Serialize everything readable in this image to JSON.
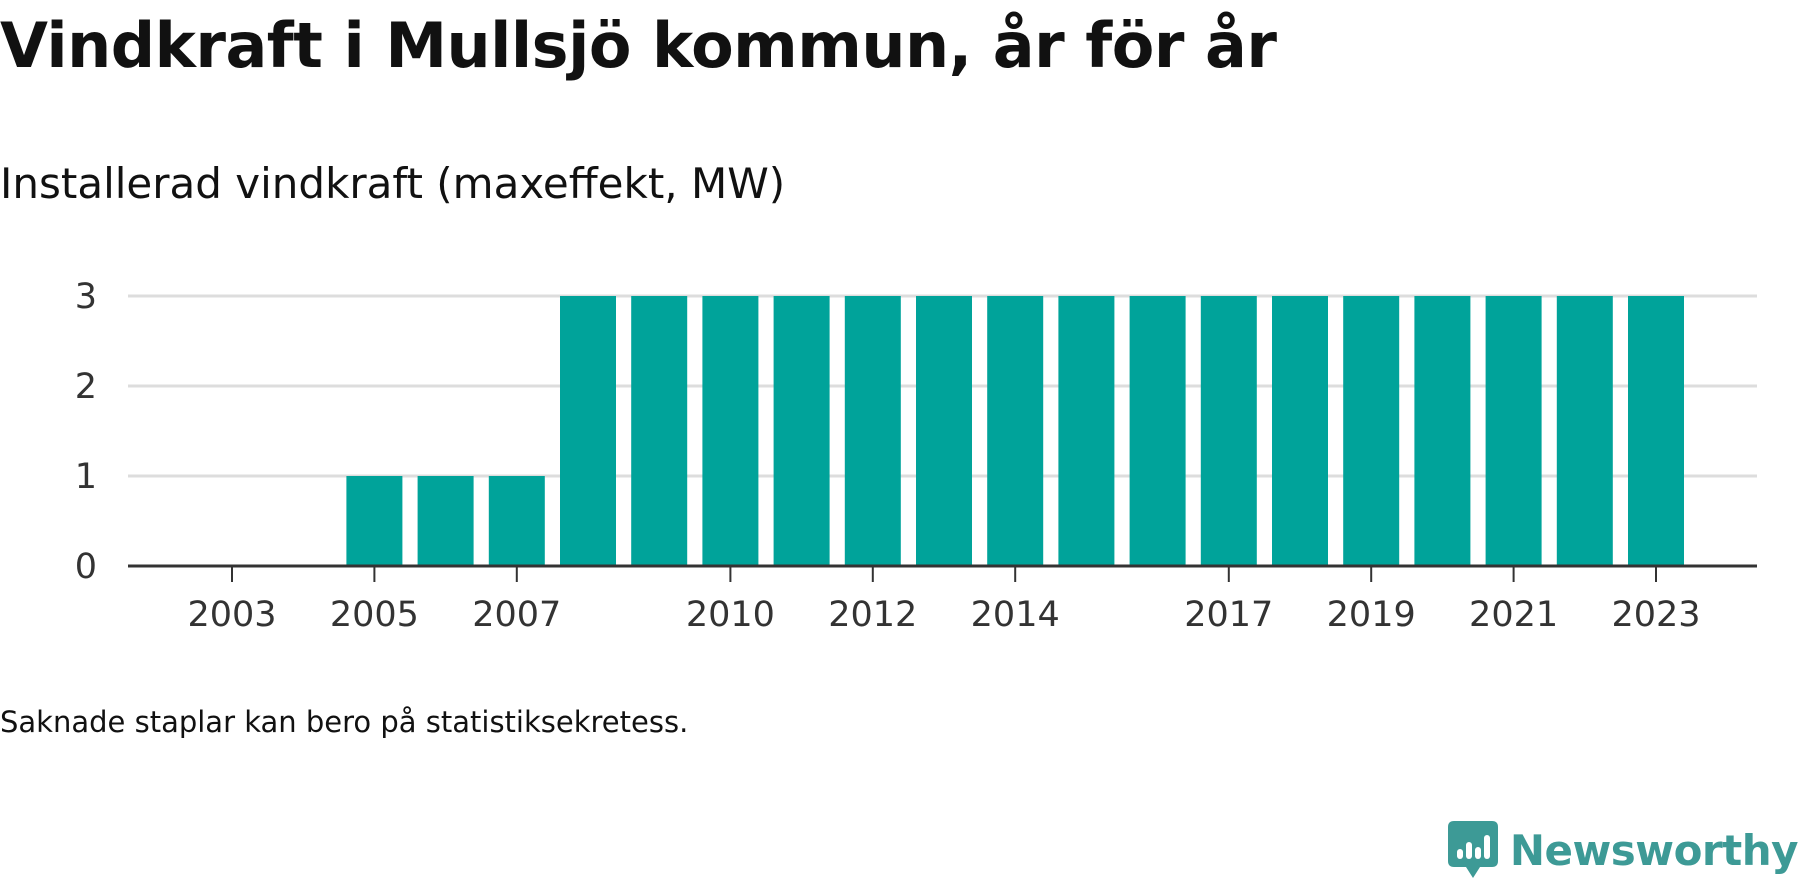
{
  "title": "Vindkraft i Mullsjö kommun, år för år",
  "subtitle": "Installerad vindkraft (maxeffekt, MW)",
  "note": "Saknade staplar kan bero på statistiksekretess.",
  "brand": {
    "name": "Newsworthy",
    "icon": "newsworthy-logo-icon",
    "color": "#3d9a96"
  },
  "colors": {
    "bar": "#00a39a",
    "grid": "#dddddd",
    "axis": "#333333"
  },
  "chart_data": {
    "type": "bar",
    "title": "Vindkraft i Mullsjö kommun, år för år",
    "subtitle": "Installerad vindkraft (maxeffekt, MW)",
    "xlabel": "",
    "ylabel": "",
    "categories": [
      "2003",
      "2004",
      "2005",
      "2006",
      "2007",
      "2008",
      "2009",
      "2010",
      "2011",
      "2012",
      "2013",
      "2014",
      "2015",
      "2016",
      "2017",
      "2018",
      "2019",
      "2020",
      "2021",
      "2022",
      "2023"
    ],
    "values": [
      null,
      null,
      1,
      1,
      1,
      3,
      3,
      3,
      3,
      3,
      3,
      3,
      3,
      3,
      3,
      3,
      3,
      3,
      3,
      3,
      3
    ],
    "x_tick_labels": [
      "2003",
      "2005",
      "2007",
      "2010",
      "2012",
      "2014",
      "2017",
      "2019",
      "2021",
      "2023"
    ],
    "y_ticks": [
      0,
      1,
      2,
      3
    ],
    "ylim": [
      0,
      3
    ],
    "grid": true,
    "legend": "none"
  }
}
